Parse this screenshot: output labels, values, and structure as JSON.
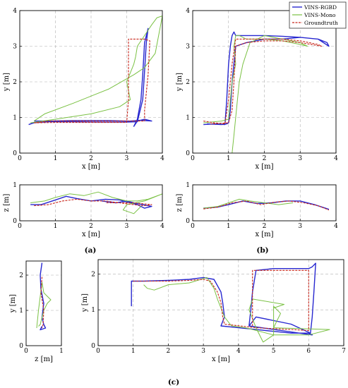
{
  "colors": {
    "vins_rgbd": "#2828d0",
    "vins_mono": "#7ac143",
    "groundtruth": "#c8281e"
  },
  "captions": {
    "a": "(a)",
    "b": "(b)",
    "c": "(c)"
  },
  "chart_data": [
    {
      "id": "a_xy",
      "type": "line",
      "xlabel": "x [m]",
      "ylabel": "y [m]",
      "xlim": [
        0,
        4
      ],
      "ylim": [
        0,
        4
      ],
      "xticks": [
        0,
        1,
        2,
        3,
        4
      ],
      "yticks": [
        0,
        1,
        2,
        3,
        4
      ],
      "grid": true,
      "series": [
        {
          "name": "VINS-RGBD",
          "color_key": "vins_rgbd",
          "x": [
            0.25,
            0.4,
            0.8,
            1.5,
            2.3,
            3.0,
            3.3,
            3.45,
            3.5,
            3.55,
            3.6,
            3.55,
            3.5,
            3.45,
            3.4,
            3.3,
            3.2,
            3.3,
            3.5,
            3.7,
            3.4,
            3.1,
            3.0,
            2.5,
            1.5,
            0.8,
            0.4
          ],
          "y": [
            0.8,
            0.85,
            0.88,
            0.88,
            0.87,
            0.87,
            0.88,
            1.5,
            2.3,
            3.1,
            3.5,
            3.3,
            3.1,
            2.2,
            1.5,
            0.95,
            0.75,
            0.9,
            0.95,
            0.9,
            0.92,
            0.9,
            0.9,
            0.91,
            0.91,
            0.9,
            0.9
          ]
        },
        {
          "name": "VINS-Mono",
          "color_key": "vins_mono",
          "x": [
            0.3,
            1.0,
            2.0,
            2.8,
            3.1,
            3.0,
            3.2,
            3.25,
            3.3,
            3.5,
            3.7,
            3.85,
            4.0,
            3.8,
            3.5,
            3.2,
            2.5,
            1.5,
            0.7,
            0.4
          ],
          "y": [
            0.85,
            0.95,
            1.1,
            1.3,
            1.5,
            2.0,
            2.5,
            2.7,
            3.0,
            3.3,
            3.6,
            3.8,
            3.85,
            2.8,
            2.4,
            2.2,
            1.8,
            1.4,
            1.1,
            0.9
          ]
        },
        {
          "name": "Groundtruth",
          "color_key": "groundtruth",
          "x": [
            0.4,
            1.0,
            2.0,
            3.0,
            3.05,
            3.05,
            3.2,
            3.5,
            3.65,
            3.6,
            3.5,
            3.5,
            2.5,
            1.5,
            0.8,
            0.4
          ],
          "y": [
            0.85,
            0.86,
            0.86,
            0.86,
            1.5,
            3.2,
            3.2,
            3.2,
            3.15,
            2.2,
            1.2,
            0.9,
            0.9,
            0.9,
            0.9,
            0.85
          ]
        }
      ]
    },
    {
      "id": "b_xy",
      "type": "line",
      "xlabel": "x [m]",
      "ylabel": "y [m]",
      "xlim": [
        0,
        4
      ],
      "ylim": [
        0,
        4
      ],
      "xticks": [
        0,
        1,
        2,
        3,
        4
      ],
      "yticks": [
        0,
        1,
        2,
        3,
        4
      ],
      "grid": true,
      "legend": {
        "placement": "top-right",
        "entries": [
          "VINS-RGBD",
          "VINS-Mono",
          "Groundtruth"
        ]
      },
      "series": [
        {
          "name": "VINS-RGBD",
          "color_key": "vins_rgbd",
          "x": [
            0.3,
            0.6,
            0.9,
            0.95,
            1.0,
            1.05,
            1.1,
            1.15,
            1.2,
            1.5,
            2.0,
            2.5,
            3.0,
            3.5,
            3.75,
            3.8,
            3.5,
            3.0,
            2.5,
            2.0,
            1.5,
            1.2,
            1.1,
            1.05,
            1.0,
            0.95,
            0.8,
            0.4
          ],
          "y": [
            0.8,
            0.82,
            0.8,
            1.5,
            2.5,
            3.0,
            3.3,
            3.4,
            3.3,
            3.3,
            3.3,
            3.28,
            3.25,
            3.2,
            3.1,
            3.0,
            3.2,
            3.25,
            3.2,
            3.2,
            3.1,
            3.0,
            2.0,
            1.2,
            0.85,
            0.82,
            0.8,
            0.82
          ]
        },
        {
          "name": "VINS-Mono",
          "color_key": "vins_mono",
          "x": [
            0.3,
            0.8,
            1.0,
            1.05,
            1.1,
            1.2,
            1.15,
            1.2,
            1.3,
            1.5,
            2.0,
            2.5,
            3.0,
            3.2,
            3.0,
            2.5,
            2.0,
            1.6,
            1.4,
            1.3,
            1.25,
            1.2,
            1.15,
            1.1
          ],
          "y": [
            0.85,
            0.9,
            0.95,
            1.5,
            2.0,
            2.5,
            3.0,
            3.3,
            3.3,
            3.2,
            3.2,
            3.15,
            3.05,
            3.0,
            3.1,
            3.2,
            3.3,
            3.1,
            2.5,
            2.0,
            1.5,
            1.0,
            0.5,
            0.0
          ]
        },
        {
          "name": "Groundtruth",
          "color_key": "groundtruth",
          "x": [
            0.3,
            0.6,
            0.9,
            1.0,
            1.1,
            1.2,
            1.5,
            2.0,
            2.5,
            3.0,
            3.5,
            3.6,
            3.0,
            2.5,
            2.0,
            1.5,
            1.2,
            1.15,
            1.1,
            1.0,
            0.5
          ],
          "y": [
            0.9,
            0.85,
            0.82,
            1.5,
            2.5,
            3.2,
            3.2,
            3.2,
            3.2,
            3.15,
            3.05,
            3.0,
            3.1,
            3.15,
            3.15,
            3.1,
            3.0,
            2.0,
            1.2,
            0.85,
            0.82
          ]
        }
      ]
    },
    {
      "id": "a_xz",
      "type": "line",
      "xlabel": "x [m]",
      "ylabel": "z [m]",
      "xlim": [
        0,
        4
      ],
      "ylim": [
        0,
        1
      ],
      "xticks": [
        0,
        1,
        2,
        3,
        4
      ],
      "yticks": [
        0,
        1
      ],
      "grid": true,
      "series": [
        {
          "name": "VINS-RGBD",
          "color_key": "vins_rgbd",
          "x": [
            0.3,
            0.6,
            1.0,
            1.3,
            1.6,
            2.0,
            2.4,
            2.8,
            3.1,
            3.3,
            3.5,
            3.7,
            3.2,
            3.0,
            2.7,
            2.3
          ],
          "y": [
            0.45,
            0.45,
            0.58,
            0.68,
            0.62,
            0.55,
            0.6,
            0.58,
            0.5,
            0.45,
            0.35,
            0.4,
            0.5,
            0.55,
            0.5,
            0.55
          ]
        },
        {
          "name": "VINS-Mono",
          "color_key": "vins_mono",
          "x": [
            0.3,
            0.7,
            1.0,
            1.4,
            1.8,
            2.2,
            2.6,
            3.0,
            3.3,
            3.6,
            4.0,
            3.5,
            3.0,
            2.9,
            3.2,
            3.4
          ],
          "y": [
            0.5,
            0.55,
            0.65,
            0.75,
            0.7,
            0.8,
            0.65,
            0.55,
            0.55,
            0.6,
            0.75,
            0.55,
            0.45,
            0.3,
            0.2,
            0.4
          ]
        },
        {
          "name": "Groundtruth",
          "color_key": "groundtruth",
          "x": [
            0.4,
            0.8,
            1.2,
            1.6,
            2.0,
            2.4,
            2.8,
            3.2,
            3.5,
            3.7,
            3.2,
            2.8,
            2.4
          ],
          "y": [
            0.42,
            0.45,
            0.55,
            0.6,
            0.55,
            0.55,
            0.5,
            0.45,
            0.42,
            0.45,
            0.5,
            0.5,
            0.5
          ]
        }
      ]
    },
    {
      "id": "b_xz",
      "type": "line",
      "xlabel": "x [m]",
      "ylabel": "z [m]",
      "xlim": [
        0,
        4
      ],
      "ylim": [
        0,
        1
      ],
      "xticks": [
        0,
        1,
        2,
        3,
        4
      ],
      "yticks": [
        0,
        1
      ],
      "grid": true,
      "series": [
        {
          "name": "VINS-RGBD",
          "color_key": "vins_rgbd",
          "x": [
            0.3,
            0.7,
            1.0,
            1.4,
            1.8,
            2.2,
            2.6,
            3.0,
            3.4,
            3.8
          ],
          "y": [
            0.35,
            0.38,
            0.45,
            0.55,
            0.48,
            0.5,
            0.55,
            0.55,
            0.45,
            0.32
          ]
        },
        {
          "name": "VINS-Mono",
          "color_key": "vins_mono",
          "x": [
            0.3,
            0.7,
            1.0,
            1.3,
            1.6,
            2.0,
            2.4,
            2.8
          ],
          "y": [
            0.35,
            0.4,
            0.5,
            0.6,
            0.55,
            0.5,
            0.45,
            0.5
          ]
        },
        {
          "name": "Groundtruth",
          "color_key": "groundtruth",
          "x": [
            0.3,
            0.7,
            1.1,
            1.5,
            1.9,
            2.3,
            2.7,
            3.1,
            3.5,
            3.8
          ],
          "y": [
            0.33,
            0.38,
            0.5,
            0.55,
            0.45,
            0.52,
            0.55,
            0.5,
            0.42,
            0.3
          ]
        }
      ]
    },
    {
      "id": "c_zy",
      "type": "line",
      "xlabel": "z [m]",
      "ylabel": "y [m]",
      "xlim": [
        0,
        1
      ],
      "ylim": [
        0,
        2.4
      ],
      "xticks": [
        0,
        1
      ],
      "yticks": [
        0,
        1,
        2
      ],
      "grid": true,
      "series": [
        {
          "name": "VINS-RGBD",
          "color_key": "vins_rgbd",
          "x": [
            0.45,
            0.4,
            0.42,
            0.5,
            0.45,
            0.5,
            0.55,
            0.4,
            0.45
          ],
          "y": [
            2.35,
            2.0,
            1.6,
            1.2,
            0.8,
            0.6,
            0.5,
            0.45,
            0.55
          ]
        },
        {
          "name": "VINS-Mono",
          "color_key": "vins_mono",
          "x": [
            0.35,
            0.4,
            0.5,
            0.6,
            0.7,
            0.5,
            0.45,
            0.35,
            0.3
          ],
          "y": [
            0.55,
            0.6,
            1.0,
            1.2,
            1.3,
            1.5,
            1.8,
            1.0,
            0.5
          ]
        },
        {
          "name": "Groundtruth",
          "color_key": "groundtruth",
          "x": [
            0.45,
            0.42,
            0.5,
            0.48,
            0.45
          ],
          "y": [
            1.95,
            1.5,
            1.0,
            0.6,
            0.5
          ]
        }
      ]
    },
    {
      "id": "c_xy",
      "type": "line",
      "xlabel": "x [m]",
      "ylabel": "y [m]",
      "xlim": [
        0,
        7
      ],
      "ylim": [
        0,
        2.4
      ],
      "xticks": [
        0,
        1,
        2,
        3,
        4,
        5,
        6,
        7
      ],
      "yticks": [
        0,
        1,
        2
      ],
      "grid": true,
      "series": [
        {
          "name": "VINS-RGBD",
          "color_key": "vins_rgbd",
          "x": [
            0.95,
            0.95,
            1.3,
            2.0,
            2.6,
            3.0,
            3.3,
            3.5,
            3.55,
            3.6,
            3.5,
            4.0,
            4.5,
            5.0,
            5.5,
            6.0,
            6.1,
            4.3,
            4.35,
            4.4,
            4.5,
            5.0,
            5.5,
            6.0,
            6.1,
            6.2,
            6.15,
            6.1,
            6.05,
            5.5,
            4.5,
            4.3
          ],
          "y": [
            1.1,
            1.8,
            1.8,
            1.82,
            1.85,
            1.9,
            1.85,
            1.5,
            1.2,
            0.8,
            0.55,
            0.5,
            0.45,
            0.4,
            0.35,
            0.35,
            0.3,
            0.55,
            1.0,
            1.5,
            2.1,
            2.15,
            2.15,
            2.15,
            2.2,
            2.3,
            1.5,
            0.8,
            0.35,
            0.6,
            0.8,
            0.55
          ]
        },
        {
          "name": "VINS-Mono",
          "color_key": "vins_mono",
          "x": [
            1.3,
            1.4,
            1.6,
            2.0,
            2.6,
            3.1,
            3.3,
            3.4,
            3.6,
            3.8,
            4.2,
            4.6,
            5.0,
            5.5,
            6.0,
            6.6,
            5.0,
            5.1,
            5.2,
            5.0,
            5.0,
            4.7,
            4.5,
            4.3,
            4.4,
            5.3,
            5.0
          ],
          "y": [
            1.7,
            1.6,
            1.55,
            1.7,
            1.75,
            1.9,
            1.6,
            1.3,
            0.8,
            0.55,
            0.5,
            0.4,
            0.3,
            0.3,
            0.3,
            0.45,
            0.5,
            0.7,
            0.9,
            1.1,
            0.3,
            0.1,
            0.5,
            1.0,
            1.3,
            1.15,
            1.05
          ]
        },
        {
          "name": "Groundtruth",
          "color_key": "groundtruth",
          "x": [
            1.0,
            1.3,
            2.0,
            2.6,
            3.0,
            3.2,
            3.4,
            3.5,
            3.55,
            3.6,
            4.5,
            5.5,
            6.0,
            6.0,
            6.0,
            4.4,
            4.4,
            4.4
          ],
          "y": [
            1.8,
            1.8,
            1.8,
            1.82,
            1.85,
            1.8,
            1.5,
            1.2,
            0.8,
            0.6,
            0.5,
            0.45,
            0.42,
            1.0,
            2.1,
            2.1,
            1.0,
            0.55
          ]
        }
      ]
    }
  ]
}
